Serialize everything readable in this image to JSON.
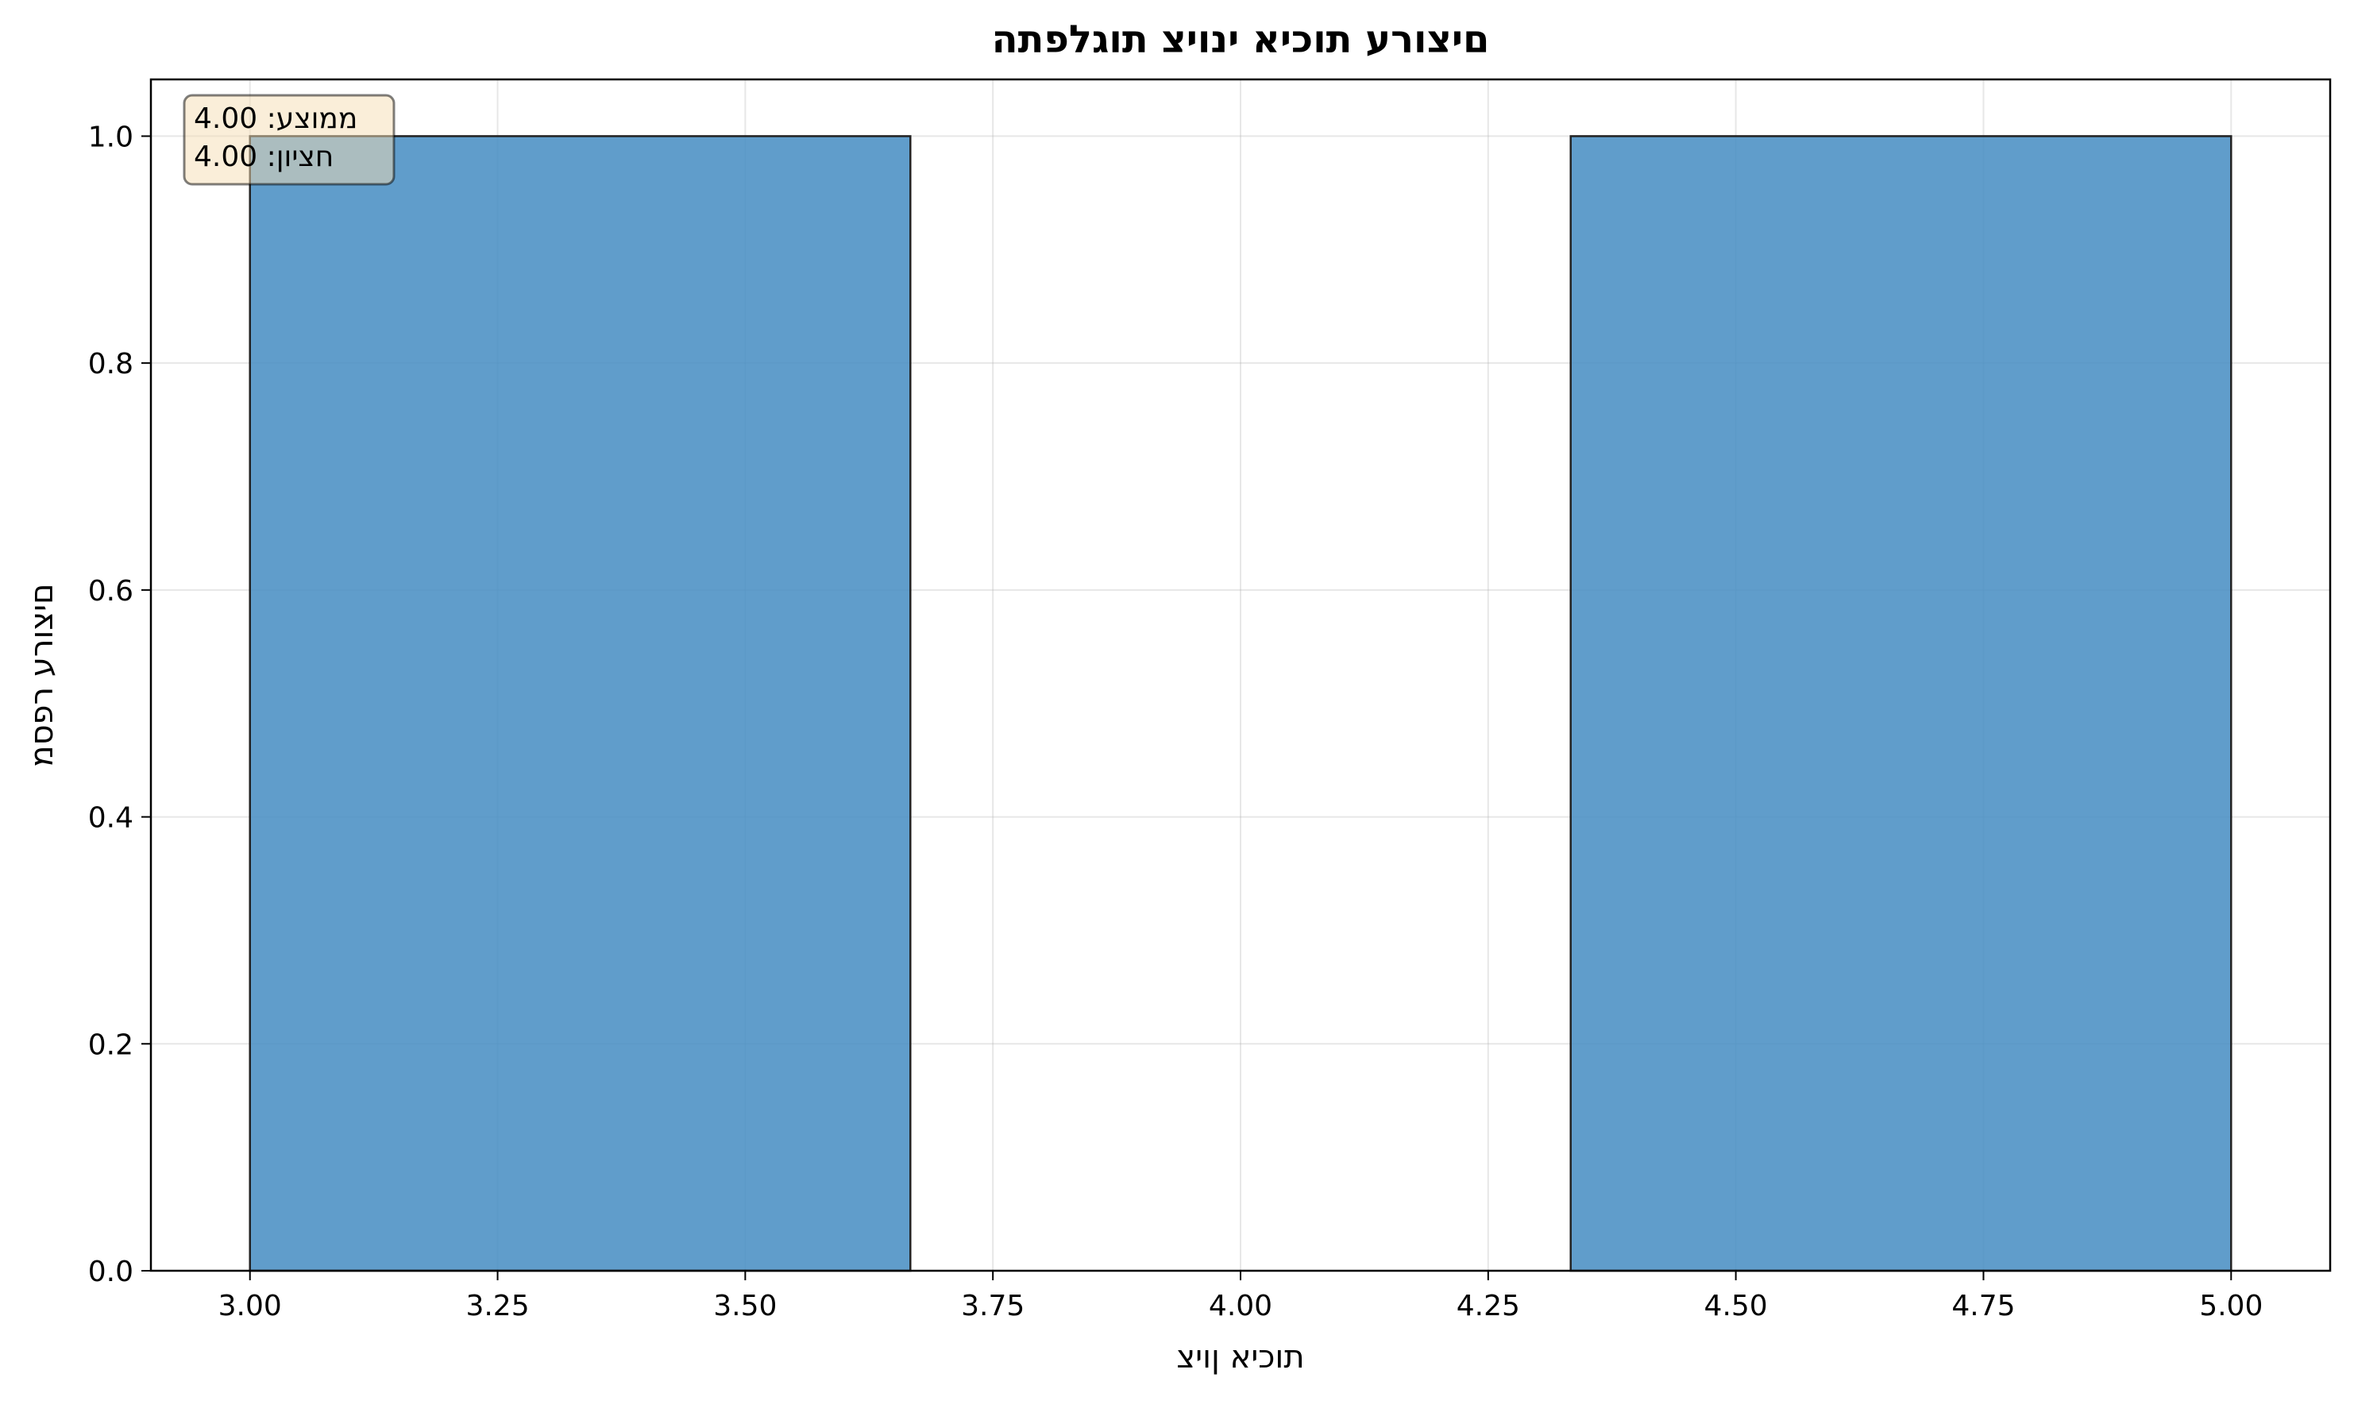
{
  "chart_data": {
    "type": "histogram",
    "title": "םיצורע תוכיא ינויצ תוגלפתה",
    "xlabel": "תוכיא ןויצ",
    "ylabel": "םיצורע רפסמ",
    "xlim": [
      2.9,
      5.1
    ],
    "ylim": [
      0,
      1.05
    ],
    "x_ticks": [
      "3.00",
      "3.25",
      "3.50",
      "3.75",
      "4.00",
      "4.25",
      "4.50",
      "4.75",
      "5.00"
    ],
    "y_ticks": [
      "0.0",
      "0.2",
      "0.4",
      "0.6",
      "0.8",
      "1.0"
    ],
    "bins": [
      {
        "start": 3.0,
        "end": 3.6667,
        "count": 1
      },
      {
        "start": 3.6667,
        "end": 4.3333,
        "count": 0
      },
      {
        "start": 4.3333,
        "end": 5.0,
        "count": 1
      }
    ],
    "grid": true,
    "bar_color": "#4a8fc4",
    "bar_edge_color": "#222222",
    "annotation": {
      "lines": [
        "ממוצע: 4.00",
        "חציון: 4.00"
      ],
      "box_color": "#f5deb3"
    }
  }
}
